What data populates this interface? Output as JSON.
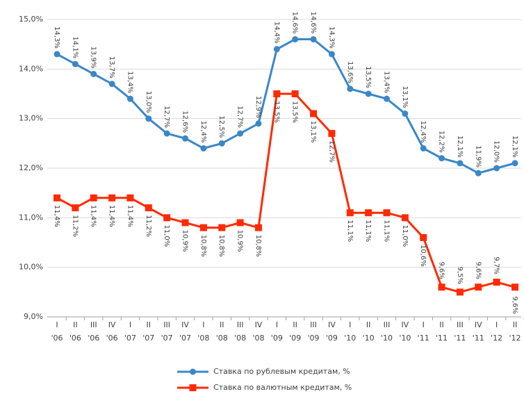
{
  "chart_data": {
    "type": "line",
    "categories": [
      [
        "I",
        "'06"
      ],
      [
        "II",
        "'06"
      ],
      [
        "III",
        "'06"
      ],
      [
        "IV",
        "'06"
      ],
      [
        "I",
        "'07"
      ],
      [
        "II",
        "'07"
      ],
      [
        "III",
        "'07"
      ],
      [
        "IV",
        "'07"
      ],
      [
        "I",
        "'08"
      ],
      [
        "II",
        "'08"
      ],
      [
        "III",
        "'08"
      ],
      [
        "IV",
        "'08"
      ],
      [
        "I",
        "'09"
      ],
      [
        "II",
        "'09"
      ],
      [
        "III",
        "'09"
      ],
      [
        "IV",
        "'09"
      ],
      [
        "I",
        "'10"
      ],
      [
        "II",
        "'10"
      ],
      [
        "III",
        "'10"
      ],
      [
        "IV",
        "'10"
      ],
      [
        "I",
        "'11"
      ],
      [
        "II",
        "'11"
      ],
      [
        "III",
        "'11"
      ],
      [
        "IV",
        "'11"
      ],
      [
        "I",
        "'12"
      ],
      [
        "II",
        "'12"
      ]
    ],
    "series": [
      {
        "name": "Ставка по рублевым кредитам, %",
        "color": "#3a87c8",
        "marker": "circle",
        "values": [
          14.3,
          14.1,
          13.9,
          13.7,
          13.4,
          13.0,
          12.7,
          12.6,
          12.4,
          12.5,
          12.7,
          12.9,
          14.4,
          14.6,
          14.6,
          14.3,
          13.6,
          13.5,
          13.4,
          13.1,
          12.4,
          12.2,
          12.1,
          11.9,
          12.0,
          12.1
        ],
        "value_labels": [
          "14,3%",
          "14,1%",
          "13,9%",
          "13,7%",
          "13,4%",
          "13,0%",
          "12,7%",
          "12,6%",
          "12,4%",
          "12,5%",
          "12,7%",
          "12,9%",
          "14,4%",
          "14,6%",
          "14,6%",
          "14,3%",
          "13,6%",
          "13,5%",
          "13,4%",
          "13,1%",
          "12,4%",
          "12,2%",
          "12,1%",
          "11,9%",
          "12,0%",
          "12,1%"
        ]
      },
      {
        "name": "Ставка по валютным кредитам, %",
        "color": "#ff2a00",
        "marker": "square",
        "values": [
          11.4,
          11.2,
          11.4,
          11.4,
          11.4,
          11.2,
          11.0,
          10.9,
          10.8,
          10.8,
          10.9,
          10.8,
          13.5,
          13.5,
          13.1,
          12.7,
          11.1,
          11.1,
          11.1,
          11.0,
          10.6,
          9.6,
          9.5,
          9.6,
          9.7,
          9.6
        ],
        "value_labels": [
          "11,4%",
          "11,2%",
          "11,4%",
          "11,4%",
          "11,4%",
          "11,2%",
          "11,0%",
          "10,9%",
          "10,8%",
          "10,8%",
          "10,9%",
          "10,8%",
          "13,5%",
          "13,5%",
          "13,1%",
          "12,7%",
          "11,1%",
          "11,1%",
          "11,1%",
          "11,0%",
          "10,6%",
          "9,6%",
          "9,5%",
          "9,6%",
          "9,7%",
          "9,6%"
        ]
      }
    ],
    "ylim": [
      9,
      15
    ],
    "yticks": [
      {
        "value": 9,
        "label": "9,0%"
      },
      {
        "value": 10,
        "label": "10,0%"
      },
      {
        "value": 11,
        "label": "11,0%"
      },
      {
        "value": 12,
        "label": "12,0%"
      },
      {
        "value": 13,
        "label": "13,0%"
      },
      {
        "value": 14,
        "label": "14,0%"
      },
      {
        "value": 15,
        "label": "15,0%"
      }
    ],
    "grid": true,
    "legend": "bottom"
  }
}
